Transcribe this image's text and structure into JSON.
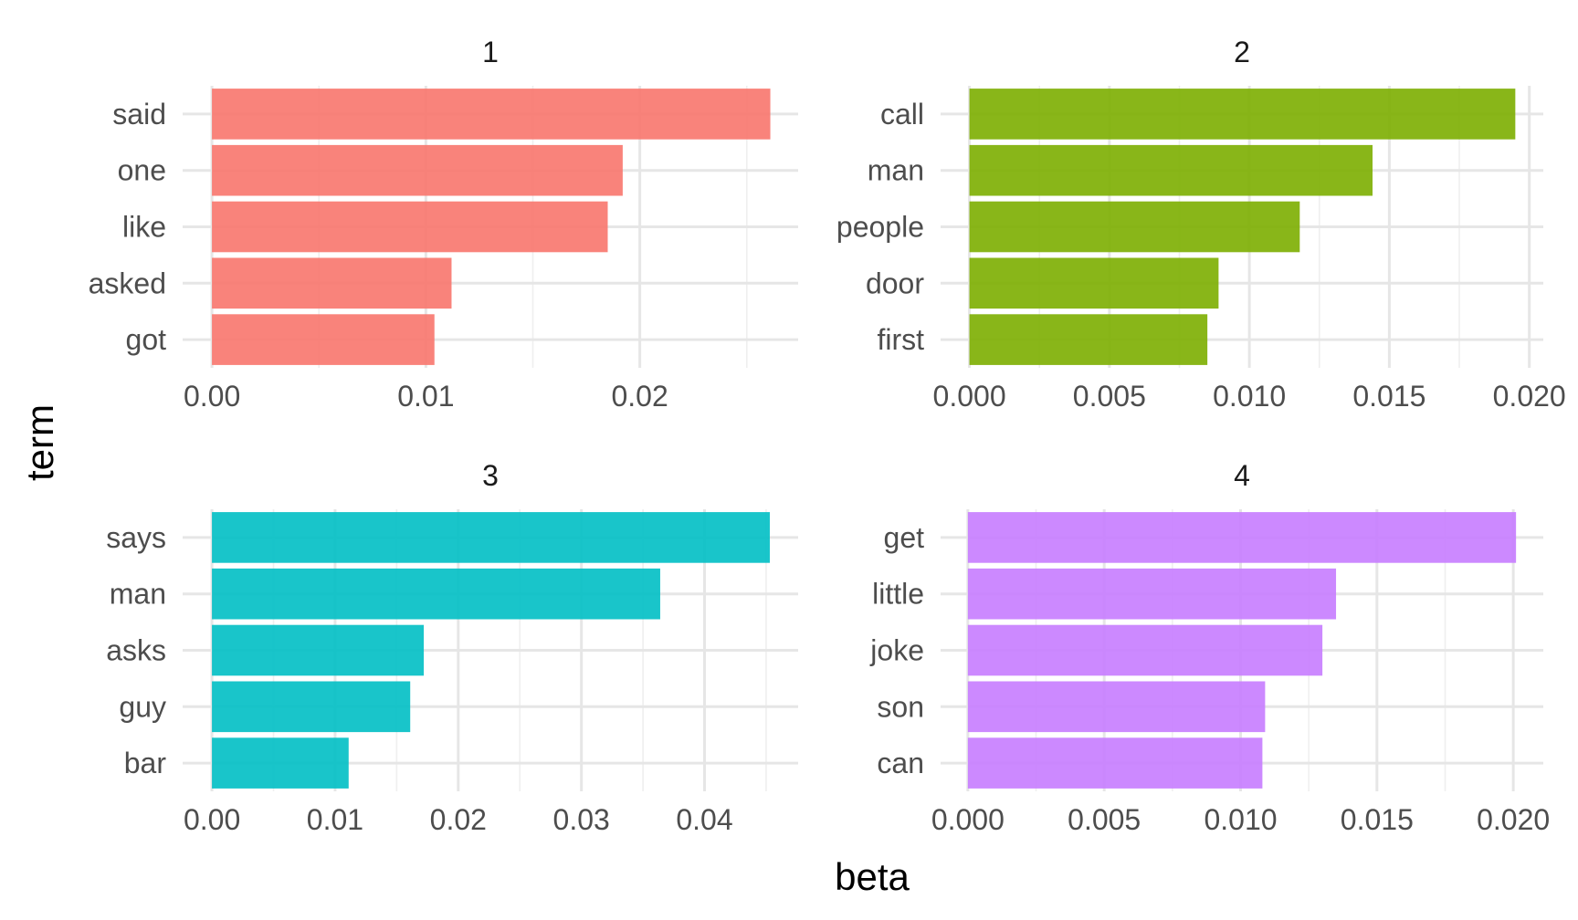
{
  "chart_data": {
    "type": "bar",
    "orientation": "horizontal",
    "xlabel": "beta",
    "ylabel": "term",
    "grid": true,
    "legend": "none",
    "panels": [
      {
        "title": "1",
        "color": "#F8766D",
        "terms": [
          "said",
          "one",
          "like",
          "asked",
          "got"
        ],
        "values": [
          0.0261,
          0.0192,
          0.0185,
          0.0112,
          0.0104
        ],
        "xlim": [
          -0.00137,
          0.0274
        ],
        "xticks": [
          0,
          0.01,
          0.02
        ],
        "xtick_labels": [
          "0.00",
          "0.01",
          "0.02"
        ]
      },
      {
        "title": "2",
        "color": "#7CAE00",
        "terms": [
          "call",
          "man",
          "people",
          "door",
          "first"
        ],
        "values": [
          0.0195,
          0.0144,
          0.0118,
          0.0089,
          0.0085
        ],
        "xlim": [
          -0.00103,
          0.0205
        ],
        "xticks": [
          0,
          0.005,
          0.01,
          0.015,
          0.02
        ],
        "xtick_labels": [
          "0.000",
          "0.005",
          "0.010",
          "0.015",
          "0.020"
        ]
      },
      {
        "title": "3",
        "color": "#00BFC4",
        "terms": [
          "says",
          "man",
          "asks",
          "guy",
          "bar"
        ],
        "values": [
          0.0453,
          0.0364,
          0.0172,
          0.0161,
          0.0111
        ],
        "xlim": [
          -0.00238,
          0.0476
        ],
        "xticks": [
          0,
          0.01,
          0.02,
          0.03,
          0.04
        ],
        "xtick_labels": [
          "0.00",
          "0.01",
          "0.02",
          "0.03",
          "0.04"
        ]
      },
      {
        "title": "4",
        "color": "#C77CFF",
        "terms": [
          "get",
          "little",
          "joke",
          "son",
          "can"
        ],
        "values": [
          0.0201,
          0.0135,
          0.013,
          0.0109,
          0.0108
        ],
        "xlim": [
          -0.001,
          0.0211
        ],
        "xticks": [
          0,
          0.005,
          0.01,
          0.015,
          0.02
        ],
        "xtick_labels": [
          "0.000",
          "0.005",
          "0.010",
          "0.015",
          "0.020"
        ]
      }
    ]
  }
}
